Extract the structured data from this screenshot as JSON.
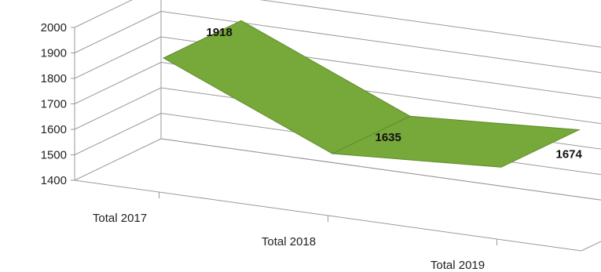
{
  "chart_data": {
    "type": "line",
    "categories": [
      "Total 2017",
      "Total 2018",
      "Total 2019"
    ],
    "series": [
      {
        "values": [
          1918,
          1635,
          1674
        ]
      }
    ],
    "data_labels": [
      "1918",
      "1635",
      "1674"
    ],
    "yticks": [
      "1400",
      "1500",
      "1600",
      "1700",
      "1800",
      "1900",
      "2000"
    ],
    "ylim": [
      1400,
      2000
    ],
    "grid": true,
    "style": "3d",
    "series_color": "#77a83a"
  }
}
